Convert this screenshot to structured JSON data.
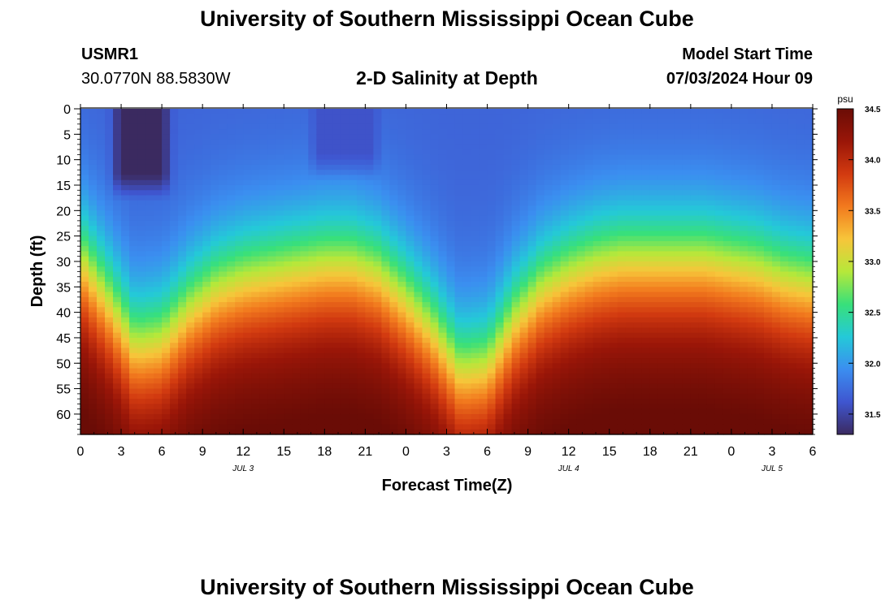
{
  "header": {
    "title": "University of Southern Mississippi Ocean Cube",
    "station": "USMR1",
    "coords": "30.0770N  88.5830W",
    "plot_title": "2-D Salinity at Depth",
    "model_label": "Model Start Time",
    "model_time": "07/03/2024 Hour 09"
  },
  "footer": {
    "title": "University of Southern Mississippi Ocean Cube"
  },
  "chart_data": {
    "type": "heatmap",
    "title": "2-D Salinity at Depth",
    "xlabel": "Forecast Time(Z)",
    "ylabel": "Depth (ft)",
    "x_range_hours": [
      0,
      54
    ],
    "x_ticks": [
      "0",
      "3",
      "6",
      "9",
      "12",
      "15",
      "18",
      "21",
      "0",
      "3",
      "6",
      "9",
      "12",
      "15",
      "18",
      "21",
      "0",
      "3",
      "6"
    ],
    "date_labels": [
      {
        "text": "JUL 3",
        "at_hour": 12
      },
      {
        "text": "JUL 4",
        "at_hour": 36
      },
      {
        "text": "JUL 5",
        "at_hour": 51
      }
    ],
    "y_range": [
      0,
      64
    ],
    "y_reversed": true,
    "y_ticks": [
      0,
      5,
      10,
      15,
      20,
      25,
      30,
      35,
      40,
      45,
      50,
      55,
      60
    ],
    "colorbar": {
      "unit": "psu",
      "min": 31.3,
      "max": 34.5,
      "ticks": [
        "34.5",
        "34.0",
        "33.5",
        "33.0",
        "32.5",
        "32.0",
        "31.5"
      ],
      "colors": [
        "#3b2a60",
        "#3f56d0",
        "#3b8ef0",
        "#24c9d8",
        "#38e07a",
        "#b6e83a",
        "#f7c53a",
        "#f27a1e",
        "#d23a10",
        "#9a1608",
        "#6a0c06"
      ]
    },
    "halocline_depth_ft": {
      "hours": [
        0,
        2,
        4,
        6,
        8,
        10,
        12,
        14,
        16,
        18,
        20,
        22,
        24,
        26,
        28,
        30,
        32,
        34,
        36,
        38,
        40,
        42,
        44,
        46,
        48,
        50,
        52,
        54
      ],
      "depth": [
        30,
        38,
        47,
        46,
        40,
        36,
        34,
        33,
        32,
        31,
        31,
        33,
        38,
        44,
        52,
        51,
        42,
        36,
        33,
        31,
        30,
        30,
        30,
        30,
        31,
        32,
        34,
        35
      ]
    },
    "fresh_patches": [
      {
        "hour_center": 4.5,
        "depth_center": 8,
        "half_width_hours": 2.5,
        "depth_max": 18,
        "salinity": 31.3
      },
      {
        "hour_center": 19.5,
        "depth_center": 8,
        "half_width_hours": 3,
        "depth_max": 14,
        "salinity": 31.6
      }
    ],
    "surface_salinity": 31.7,
    "bottom_salinity": 34.4,
    "grid": false
  }
}
